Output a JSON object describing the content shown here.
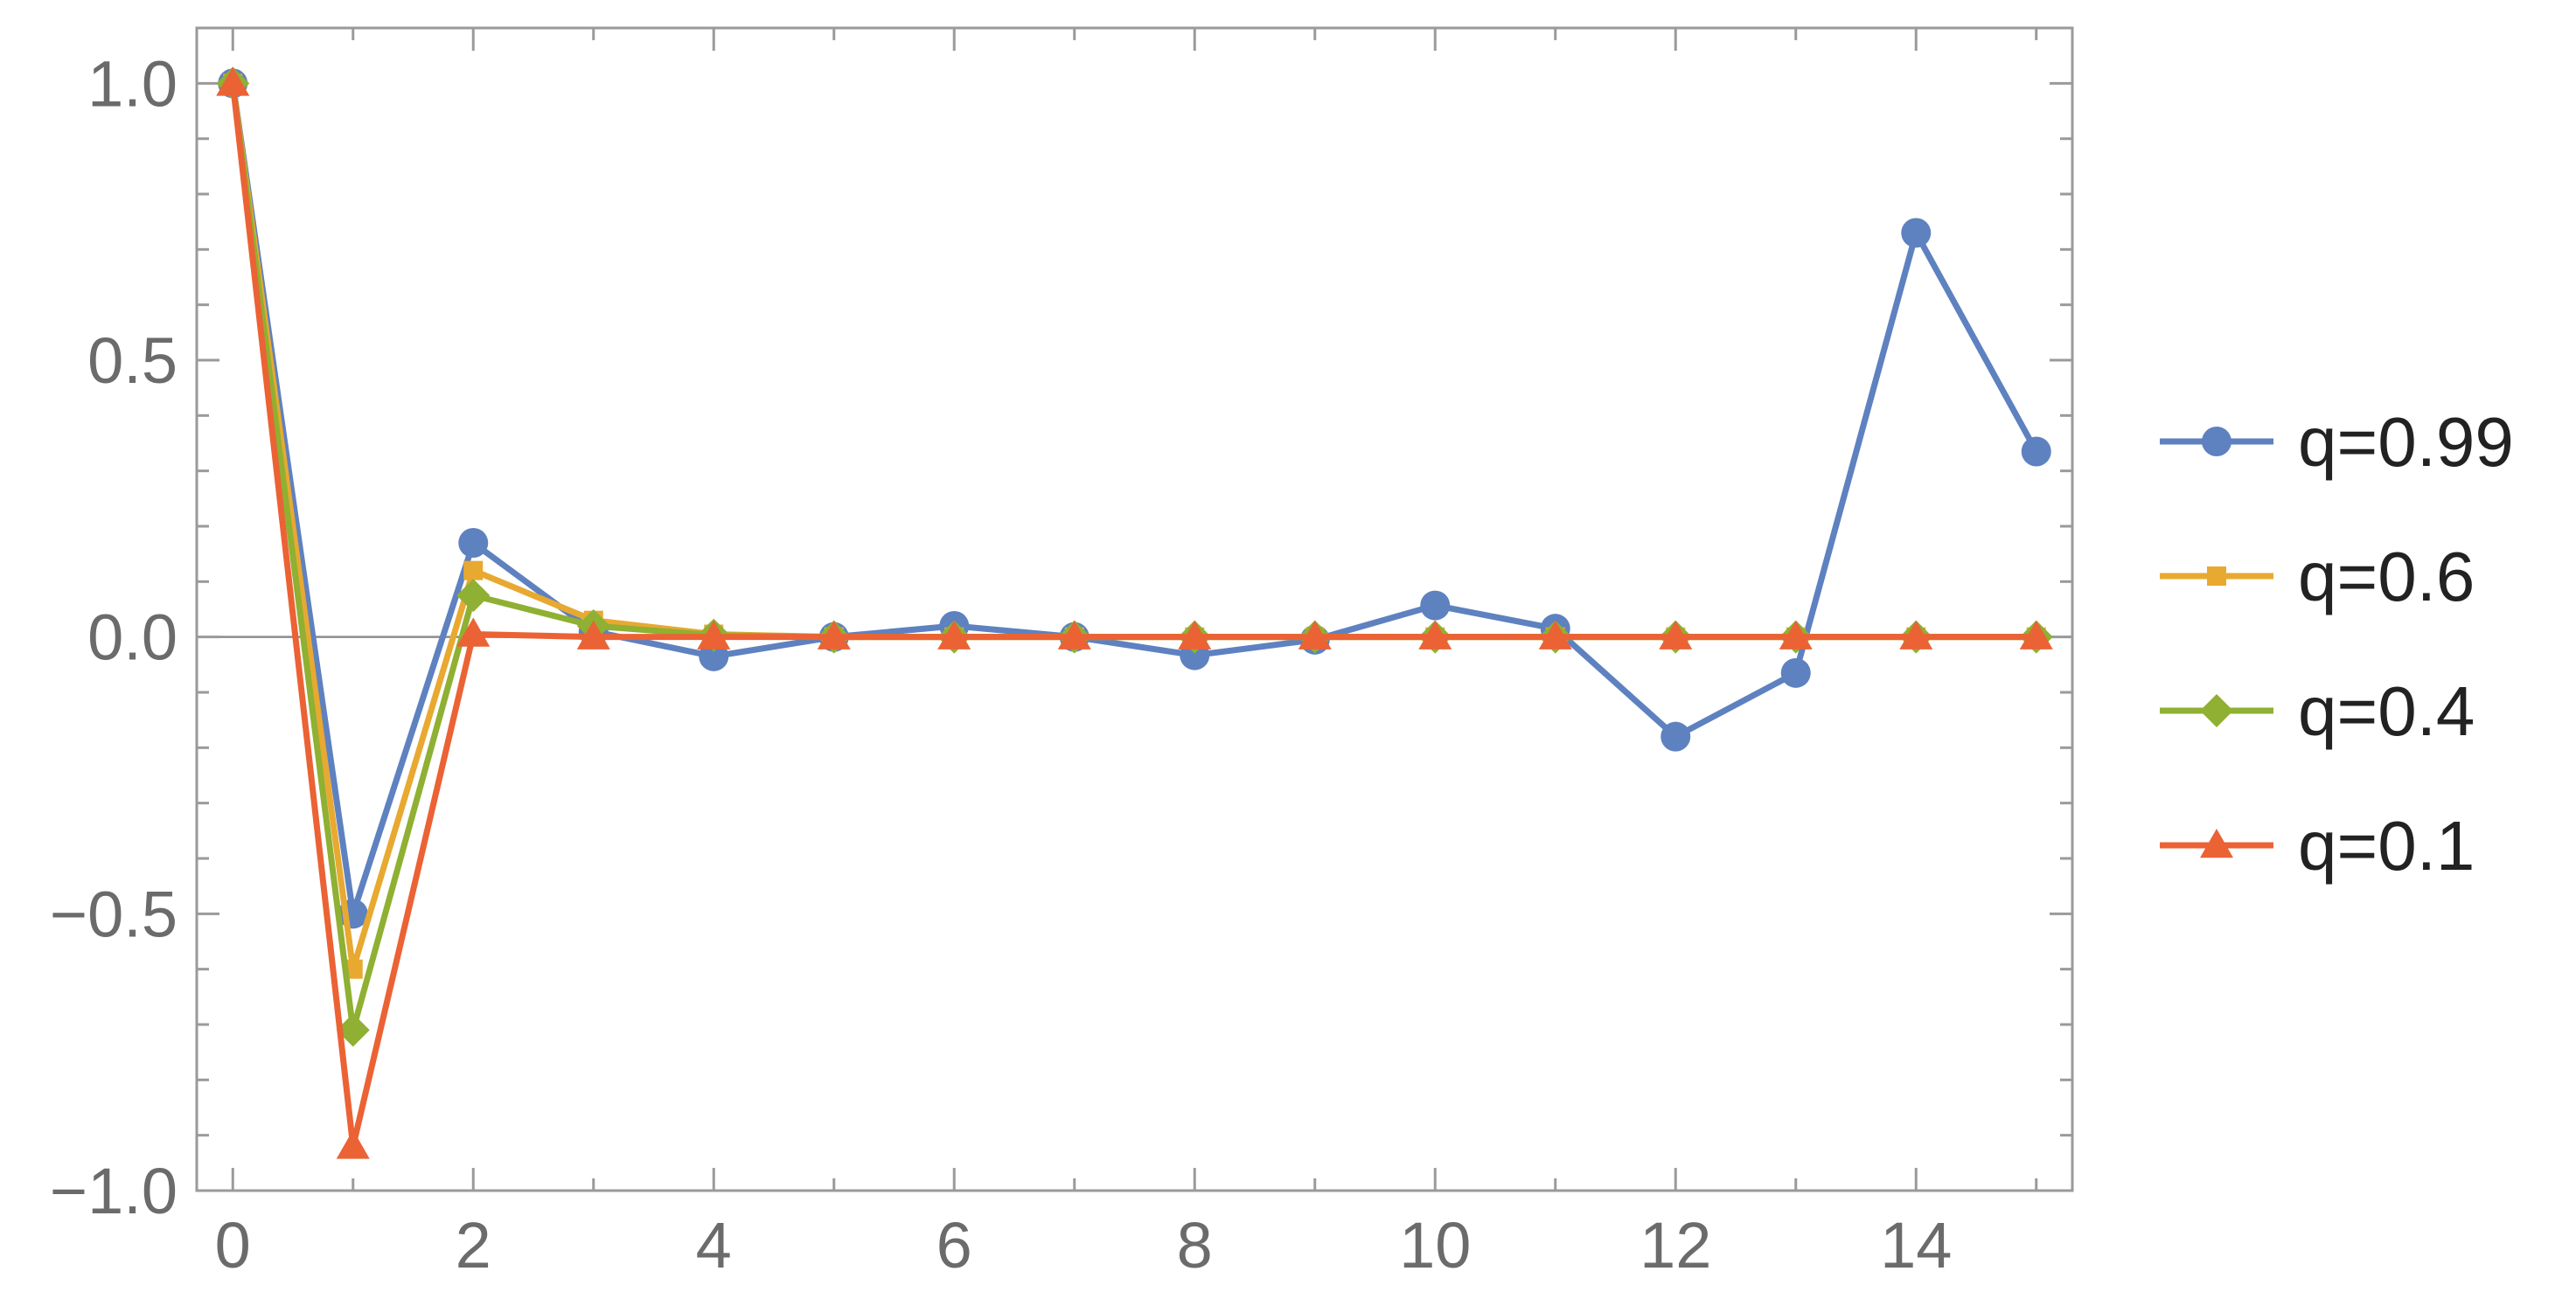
{
  "chart_data": {
    "type": "line",
    "title": "",
    "xlabel": "",
    "ylabel": "",
    "xlim": [
      -0.3,
      15.3
    ],
    "ylim": [
      -1.0,
      1.1
    ],
    "x_ticks": [
      0,
      2,
      4,
      6,
      8,
      10,
      12,
      14
    ],
    "x_tick_labels": [
      "0",
      "2",
      "4",
      "6",
      "8",
      "10",
      "12",
      "14"
    ],
    "y_ticks": [
      1.0,
      0.5,
      0.0,
      -0.5,
      -1.0
    ],
    "y_tick_labels": [
      "1.0",
      "0.5",
      "0.0",
      "−0.5",
      "−1.0"
    ],
    "grid": false,
    "legend_position": "right",
    "x": [
      0,
      1,
      2,
      3,
      4,
      5,
      6,
      7,
      8,
      9,
      10,
      11,
      12,
      13,
      14,
      15
    ],
    "series": [
      {
        "name": "q=0.99",
        "color": "#5e81c0",
        "marker": "circle",
        "values": [
          1.0,
          -0.5,
          0.17,
          0.01,
          -0.035,
          0.0,
          0.02,
          0.0,
          -0.033,
          -0.005,
          0.057,
          0.015,
          -0.18,
          -0.065,
          0.73,
          0.335
        ]
      },
      {
        "name": "q=0.6",
        "color": "#e8a931",
        "marker": "square",
        "values": [
          1.0,
          -0.6,
          0.12,
          0.03,
          0.005,
          0.0,
          0.0,
          0.0,
          0.0,
          0.0,
          0.0,
          0.0,
          0.0,
          0.0,
          0.0,
          0.0
        ]
      },
      {
        "name": "q=0.4",
        "color": "#8fb032",
        "marker": "diamond",
        "values": [
          1.0,
          -0.71,
          0.075,
          0.02,
          0.003,
          0.0,
          0.0,
          0.0,
          0.0,
          0.0,
          0.0,
          0.0,
          0.0,
          0.0,
          0.0,
          0.0
        ]
      },
      {
        "name": "q=0.1",
        "color": "#eb6235",
        "marker": "triangle",
        "values": [
          1.0,
          -0.92,
          0.005,
          0.0,
          0.0,
          0.0,
          0.0,
          0.0,
          0.0,
          0.0,
          0.0,
          0.0,
          0.0,
          0.0,
          0.0,
          0.0
        ]
      }
    ]
  }
}
